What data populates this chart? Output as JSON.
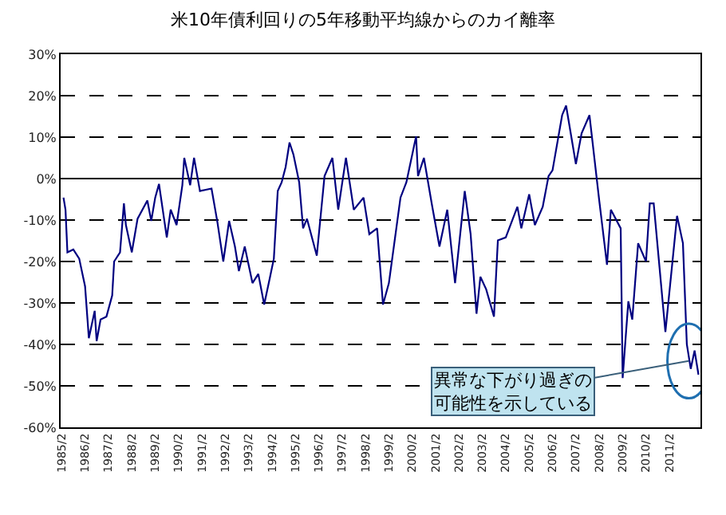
{
  "chart_data": {
    "type": "line",
    "title": "米10年債利回りの5年移動平均線からのカイ離率",
    "x": [
      "1985-03",
      "1985-04",
      "1985-05",
      "1985-08",
      "1985-11",
      "1986-02",
      "1986-04",
      "1986-07",
      "1986-08",
      "1986-10",
      "1987-01",
      "1987-04",
      "1987-05",
      "1987-08",
      "1987-10",
      "1987-11",
      "1988-02",
      "1988-05",
      "1988-10",
      "1988-12",
      "1989-02",
      "1989-04",
      "1989-08",
      "1989-10",
      "1990-01",
      "1990-04",
      "1990-05",
      "1990-08",
      "1990-10",
      "1991-01",
      "1991-07",
      "1991-10",
      "1992-01",
      "1992-04",
      "1992-07",
      "1992-09",
      "1992-12",
      "1993-04",
      "1993-07",
      "1993-10",
      "1994-01",
      "1994-03",
      "1994-05",
      "1994-07",
      "1994-09",
      "1994-11",
      "1995-01",
      "1995-04",
      "1995-06",
      "1995-08",
      "1996-01",
      "1996-05",
      "1996-09",
      "1996-12",
      "1997-04",
      "1997-08",
      "1998-01",
      "1998-04",
      "1998-08",
      "1998-11",
      "1999-02",
      "1999-08",
      "1999-11",
      "2000-04",
      "2000-05",
      "2000-08",
      "2000-12",
      "2001-04",
      "2001-08",
      "2001-12",
      "2002-05",
      "2002-08",
      "2002-11",
      "2003-01",
      "2003-04",
      "2003-08",
      "2003-10",
      "2004-02",
      "2004-08",
      "2004-10",
      "2005-02",
      "2005-05",
      "2005-09",
      "2005-12",
      "2006-02",
      "2006-07",
      "2006-09",
      "2007-02",
      "2007-05",
      "2007-09",
      "2008-02",
      "2008-06",
      "2008-08",
      "2009-01",
      "2009-02",
      "2009-05",
      "2009-07",
      "2009-10",
      "2010-02",
      "2010-04",
      "2010-06",
      "2010-12",
      "2011-06",
      "2011-09",
      "2011-11",
      "2012-01",
      "2012-03",
      "2012-05"
    ],
    "values": [
      -4.6,
      -7.5,
      -17.8,
      -17.1,
      -19.3,
      -26,
      -38.5,
      -31.9,
      -39.2,
      -34,
      -33.3,
      -28.2,
      -20,
      -17.8,
      -6,
      -11.2,
      -17.8,
      -9.7,
      -5.3,
      -10.2,
      -4.6,
      -1.3,
      -14.2,
      -7.5,
      -11.2,
      -1.6,
      5,
      -1.6,
      5,
      -3,
      -2.4,
      -10.5,
      -20,
      -10.2,
      -16.4,
      -22.3,
      -16.4,
      -25.2,
      -23,
      -30.4,
      -23.7,
      -19.3,
      -3,
      -0.9,
      2.8,
      8.7,
      5.8,
      -0.9,
      -12,
      -9.7,
      -18.6,
      0.6,
      5,
      -7.5,
      5,
      -7.5,
      -4.6,
      -13.4,
      -12,
      -30.4,
      -25.2,
      -4.6,
      -0.9,
      10.2,
      0.6,
      5,
      -6,
      -16.4,
      -7.5,
      -25.2,
      -3,
      -13.4,
      -32.6,
      -23.7,
      -26.7,
      -33.3,
      -14.9,
      -14.2,
      -6.8,
      -12,
      -3.8,
      -11.2,
      -6.8,
      0.6,
      2,
      15.3,
      17.6,
      3.5,
      10.9,
      15.3,
      -5.3,
      -20.8,
      -7.5,
      -12,
      -48.1,
      -29.6,
      -34,
      -15.6,
      -20,
      -6,
      -6,
      -37,
      -9,
      -15.6,
      -40,
      -45.9,
      -41.5,
      -47.3
    ],
    "color": "#000080",
    "xlim": [
      "1985-01-15",
      "2012-06-01"
    ],
    "xticks": [
      {
        "value": "1985-02-01",
        "label": "1985/2"
      },
      {
        "value": "1986-02-01",
        "label": "1986/2"
      },
      {
        "value": "1987-02-01",
        "label": "1987/2"
      },
      {
        "value": "1988-02-01",
        "label": "1988/2"
      },
      {
        "value": "1989-02-01",
        "label": "1989/2"
      },
      {
        "value": "1990-02-01",
        "label": "1990/2"
      },
      {
        "value": "1991-02-01",
        "label": "1991/2"
      },
      {
        "value": "1992-02-01",
        "label": "1992/2"
      },
      {
        "value": "1993-02-01",
        "label": "1993/2"
      },
      {
        "value": "1994-02-01",
        "label": "1994/2"
      },
      {
        "value": "1995-02-01",
        "label": "1995/2"
      },
      {
        "value": "1996-02-01",
        "label": "1996/2"
      },
      {
        "value": "1997-02-01",
        "label": "1997/2"
      },
      {
        "value": "1998-02-01",
        "label": "1998/2"
      },
      {
        "value": "1999-02-01",
        "label": "1999/2"
      },
      {
        "value": "2000-02-01",
        "label": "2000/2"
      },
      {
        "value": "2001-02-01",
        "label": "2001/2"
      },
      {
        "value": "2002-02-01",
        "label": "2002/2"
      },
      {
        "value": "2003-02-01",
        "label": "2003/2"
      },
      {
        "value": "2004-02-01",
        "label": "2004/2"
      },
      {
        "value": "2005-02-01",
        "label": "2005/2"
      },
      {
        "value": "2006-02-01",
        "label": "2006/2"
      },
      {
        "value": "2007-02-01",
        "label": "2007/2"
      },
      {
        "value": "2008-02-01",
        "label": "2008/2"
      },
      {
        "value": "2009-02-01",
        "label": "2009/2"
      },
      {
        "value": "2010-02-01",
        "label": "2010/2"
      },
      {
        "value": "2011-02-01",
        "label": "2011/2"
      }
    ],
    "ylim": [
      -60,
      30
    ],
    "yticks": [
      {
        "value": -60,
        "label": "-60%"
      },
      {
        "value": -50,
        "label": "-50%"
      },
      {
        "value": -40,
        "label": "-40%"
      },
      {
        "value": -30,
        "label": "-30%"
      },
      {
        "value": -20,
        "label": "-20%"
      },
      {
        "value": -10,
        "label": "-10%"
      },
      {
        "value": 0,
        "label": "0%"
      },
      {
        "value": 10,
        "label": "10%"
      },
      {
        "value": 20,
        "label": "20%"
      },
      {
        "value": 30,
        "label": "30%"
      }
    ],
    "grid": "y",
    "annotations": [
      {
        "text": "異常な下がり過ぎの可能性を示している",
        "x": "2011-12",
        "y": -44
      }
    ]
  }
}
